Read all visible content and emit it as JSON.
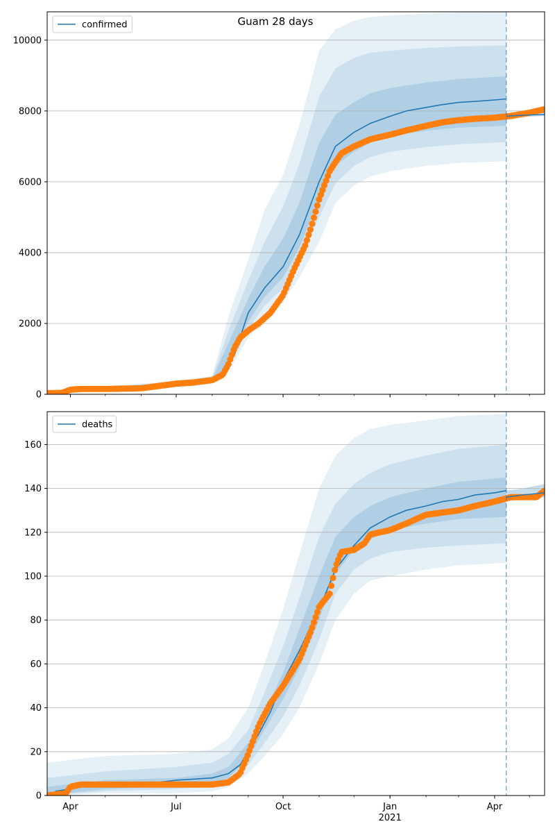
{
  "figure": {
    "title": "Guam 28 days"
  },
  "colors": {
    "model": "#1f77b4",
    "observed": "#ff7f0e",
    "band": "#1f77b4",
    "grid": "#b0b0b0",
    "forecast_line": "#1f77b4"
  },
  "chart_data": [
    {
      "type": "line",
      "legend": "confirmed",
      "legend_position": "top-left",
      "grid": true,
      "xlim": [
        "2020-03-12",
        "2021-05-14"
      ],
      "ylim": [
        0,
        10800
      ],
      "yticks": [
        0,
        2000,
        4000,
        6000,
        8000,
        10000
      ],
      "xticks": [
        {
          "date": "2020-04-01",
          "label": "Apr",
          "sub": ""
        },
        {
          "date": "2020-07-01",
          "label": "Jul",
          "sub": ""
        },
        {
          "date": "2020-10-01",
          "label": "Oct",
          "sub": ""
        },
        {
          "date": "2021-01-01",
          "label": "Jan",
          "sub": "2021"
        },
        {
          "date": "2021-04-01",
          "label": "Apr",
          "sub": ""
        }
      ],
      "forecast_start": "2021-04-11",
      "series": [
        {
          "name": "confirmed",
          "kind": "model",
          "x": [
            "2020-03-12",
            "2020-04-01",
            "2020-05-01",
            "2020-06-01",
            "2020-07-01",
            "2020-07-15",
            "2020-08-01",
            "2020-08-10",
            "2020-08-20",
            "2020-09-01",
            "2020-09-15",
            "2020-10-01",
            "2020-10-15",
            "2020-11-01",
            "2020-11-15",
            "2020-12-01",
            "2020-12-15",
            "2021-01-01",
            "2021-01-15",
            "2021-02-01",
            "2021-02-15",
            "2021-03-01",
            "2021-03-15",
            "2021-04-01",
            "2021-04-11"
          ],
          "y": [
            50,
            140,
            170,
            200,
            310,
            340,
            400,
            560,
            1100,
            2300,
            3000,
            3600,
            4500,
            6000,
            7000,
            7400,
            7650,
            7850,
            8000,
            8100,
            8180,
            8240,
            8270,
            8310,
            8340
          ]
        },
        {
          "name": "confirmed",
          "kind": "observed",
          "x": [
            "2020-03-12",
            "2020-03-25",
            "2020-04-01",
            "2020-04-10",
            "2020-05-01",
            "2020-06-01",
            "2020-07-01",
            "2020-07-15",
            "2020-08-01",
            "2020-08-10",
            "2020-08-15",
            "2020-08-20",
            "2020-08-25",
            "2020-09-01",
            "2020-09-10",
            "2020-09-20",
            "2020-10-01",
            "2020-10-10",
            "2020-10-20",
            "2020-10-25",
            "2020-11-01",
            "2020-11-10",
            "2020-11-20",
            "2020-12-01",
            "2020-12-15",
            "2021-01-01",
            "2021-01-15",
            "2021-02-01",
            "2021-02-15",
            "2021-03-01",
            "2021-03-15",
            "2021-04-01",
            "2021-04-15",
            "2021-05-01",
            "2021-05-14"
          ],
          "y": [
            30,
            40,
            130,
            150,
            150,
            170,
            300,
            330,
            400,
            550,
            850,
            1300,
            1600,
            1800,
            2000,
            2300,
            2800,
            3500,
            4200,
            4700,
            5500,
            6300,
            6800,
            7000,
            7200,
            7330,
            7450,
            7580,
            7680,
            7740,
            7780,
            7810,
            7860,
            7950,
            8050
          ]
        },
        {
          "name": "confirmed",
          "kind": "observed-extension",
          "x": [
            "2021-04-11",
            "2021-04-25",
            "2021-05-14"
          ],
          "y": [
            7850,
            7880,
            7900
          ]
        }
      ],
      "bands": [
        {
          "x": [
            "2020-03-12",
            "2020-05-01",
            "2020-07-01",
            "2020-08-01",
            "2020-08-15",
            "2020-09-01",
            "2020-09-15",
            "2020-10-01",
            "2020-10-15",
            "2020-11-01",
            "2020-11-15",
            "2020-12-01",
            "2020-12-15",
            "2021-01-01",
            "2021-02-01",
            "2021-03-01",
            "2021-04-11"
          ],
          "lower": [
            20,
            150,
            260,
            340,
            650,
            1600,
            2200,
            2600,
            3300,
            4300,
            5400,
            5900,
            6150,
            6300,
            6450,
            6530,
            6580
          ],
          "upper": [
            100,
            220,
            380,
            520,
            2200,
            3800,
            5200,
            6200,
            7600,
            9700,
            10300,
            10550,
            10650,
            10700,
            10750,
            10780,
            10800
          ]
        },
        {
          "x": [
            "2020-03-12",
            "2020-05-01",
            "2020-07-01",
            "2020-08-01",
            "2020-08-15",
            "2020-09-01",
            "2020-09-15",
            "2020-10-01",
            "2020-10-15",
            "2020-11-01",
            "2020-11-15",
            "2020-12-01",
            "2020-12-15",
            "2021-01-01",
            "2021-02-01",
            "2021-03-01",
            "2021-04-11"
          ],
          "lower": [
            30,
            155,
            280,
            360,
            760,
            1850,
            2500,
            3000,
            3800,
            5000,
            5950,
            6450,
            6700,
            6850,
            6980,
            7060,
            7120
          ],
          "upper": [
            85,
            200,
            350,
            470,
            1800,
            3200,
            4300,
            5300,
            6500,
            8400,
            9200,
            9500,
            9650,
            9700,
            9780,
            9820,
            9850
          ]
        },
        {
          "x": [
            "2020-03-12",
            "2020-05-01",
            "2020-07-01",
            "2020-08-01",
            "2020-08-15",
            "2020-09-01",
            "2020-09-15",
            "2020-10-01",
            "2020-10-15",
            "2020-11-01",
            "2020-11-15",
            "2020-12-01",
            "2020-12-15",
            "2021-01-01",
            "2021-02-01",
            "2021-03-01",
            "2021-04-11"
          ],
          "lower": [
            40,
            160,
            295,
            380,
            880,
            2050,
            2750,
            3300,
            4150,
            5500,
            6450,
            6850,
            7100,
            7300,
            7440,
            7530,
            7580
          ],
          "upper": [
            70,
            185,
            330,
            430,
            1450,
            2700,
            3600,
            4400,
            5400,
            7100,
            7900,
            8250,
            8500,
            8650,
            8800,
            8900,
            8980
          ]
        }
      ],
      "extension_band": {
        "x": [
          "2021-04-11",
          "2021-04-25",
          "2021-05-14"
        ],
        "lower": [
          7800,
          7830,
          7860
        ],
        "upper": [
          7880,
          7920,
          8050
        ]
      }
    },
    {
      "type": "line",
      "legend": "deaths",
      "legend_position": "top-left",
      "grid": true,
      "xlim": [
        "2020-03-12",
        "2021-05-14"
      ],
      "ylim": [
        0,
        175
      ],
      "yticks": [
        0,
        20,
        40,
        60,
        80,
        100,
        120,
        140,
        160
      ],
      "xticks": [
        {
          "date": "2020-04-01",
          "label": "Apr",
          "sub": ""
        },
        {
          "date": "2020-07-01",
          "label": "Jul",
          "sub": ""
        },
        {
          "date": "2020-10-01",
          "label": "Oct",
          "sub": ""
        },
        {
          "date": "2021-01-01",
          "label": "Jan",
          "sub": "2021"
        },
        {
          "date": "2021-04-01",
          "label": "Apr",
          "sub": ""
        }
      ],
      "forecast_start": "2021-04-11",
      "series": [
        {
          "name": "deaths",
          "kind": "model",
          "x": [
            "2020-03-12",
            "2020-03-20",
            "2020-04-01",
            "2020-04-15",
            "2020-05-01",
            "2020-06-01",
            "2020-07-01",
            "2020-08-01",
            "2020-08-15",
            "2020-08-25",
            "2020-09-01",
            "2020-09-10",
            "2020-09-20",
            "2020-10-01",
            "2020-10-15",
            "2020-11-01",
            "2020-11-15",
            "2020-12-01",
            "2020-12-15",
            "2021-01-01",
            "2021-01-15",
            "2021-02-01",
            "2021-02-15",
            "2021-03-01",
            "2021-03-15",
            "2021-04-01",
            "2021-04-11"
          ],
          "y": [
            0,
            2,
            3,
            5,
            5,
            5,
            7,
            8,
            10,
            14,
            20,
            28,
            38,
            52,
            66,
            85,
            103,
            114,
            122,
            127,
            130,
            132,
            134,
            135,
            137,
            138,
            139
          ]
        },
        {
          "name": "deaths",
          "kind": "observed",
          "x": [
            "2020-03-12",
            "2020-03-28",
            "2020-04-01",
            "2020-04-10",
            "2020-05-01",
            "2020-06-01",
            "2020-07-01",
            "2020-08-01",
            "2020-08-15",
            "2020-08-25",
            "2020-09-01",
            "2020-09-10",
            "2020-09-20",
            "2020-10-01",
            "2020-10-15",
            "2020-10-25",
            "2020-11-01",
            "2020-11-10",
            "2020-11-15",
            "2020-11-20",
            "2020-12-01",
            "2020-12-10",
            "2020-12-15",
            "2021-01-01",
            "2021-01-15",
            "2021-02-01",
            "2021-02-15",
            "2021-03-01",
            "2021-03-15",
            "2021-04-01",
            "2021-04-15",
            "2021-05-01",
            "2021-05-07",
            "2021-05-14"
          ],
          "y": [
            0,
            1,
            4,
            5,
            5,
            5,
            5,
            5,
            6,
            10,
            19,
            32,
            42,
            50,
            62,
            75,
            86,
            92,
            104,
            111,
            112,
            115,
            119,
            121,
            124,
            128,
            129,
            130,
            132,
            134,
            136,
            136,
            136,
            139
          ]
        },
        {
          "name": "deaths",
          "kind": "observed-extension",
          "x": [
            "2021-04-11",
            "2021-04-25",
            "2021-05-14"
          ],
          "y": [
            136,
            137,
            138
          ]
        }
      ],
      "bands": [
        {
          "x": [
            "2020-03-12",
            "2020-05-01",
            "2020-07-01",
            "2020-08-01",
            "2020-08-15",
            "2020-09-01",
            "2020-09-15",
            "2020-10-01",
            "2020-10-15",
            "2020-11-01",
            "2020-11-15",
            "2020-12-01",
            "2020-12-15",
            "2021-01-01",
            "2021-02-01",
            "2021-03-01",
            "2021-04-11"
          ],
          "lower": [
            0,
            1,
            1,
            2,
            4,
            10,
            18,
            28,
            40,
            60,
            80,
            92,
            98,
            100,
            103,
            105,
            106
          ],
          "upper": [
            15,
            18,
            19,
            21,
            26,
            40,
            60,
            85,
            110,
            140,
            155,
            163,
            167,
            169,
            171,
            173,
            174
          ]
        },
        {
          "x": [
            "2020-03-12",
            "2020-05-01",
            "2020-07-01",
            "2020-08-01",
            "2020-08-15",
            "2020-09-01",
            "2020-09-15",
            "2020-10-01",
            "2020-10-15",
            "2020-11-01",
            "2020-11-15",
            "2020-12-01",
            "2020-12-15",
            "2021-01-01",
            "2021-02-01",
            "2021-03-01",
            "2021-04-11"
          ],
          "lower": [
            0,
            2,
            3,
            4,
            6,
            14,
            24,
            36,
            50,
            71,
            92,
            103,
            108,
            111,
            113,
            114,
            115
          ],
          "upper": [
            8,
            11,
            13,
            15,
            19,
            30,
            47,
            68,
            90,
            118,
            133,
            142,
            147,
            151,
            155,
            158,
            160
          ]
        },
        {
          "x": [
            "2020-03-12",
            "2020-05-01",
            "2020-07-01",
            "2020-08-01",
            "2020-08-15",
            "2020-09-01",
            "2020-09-15",
            "2020-10-01",
            "2020-10-15",
            "2020-11-01",
            "2020-11-15",
            "2020-12-01",
            "2020-12-15",
            "2021-01-01",
            "2021-02-01",
            "2021-03-01",
            "2021-04-11"
          ],
          "lower": [
            0,
            3,
            4,
            5,
            8,
            17,
            30,
            44,
            58,
            80,
            101,
            112,
            117,
            121,
            124,
            126,
            127
          ],
          "upper": [
            4,
            7,
            8,
            10,
            13,
            24,
            38,
            56,
            76,
            100,
            118,
            127,
            132,
            136,
            140,
            143,
            145
          ]
        }
      ],
      "extension_band": {
        "x": [
          "2021-04-11",
          "2021-04-25",
          "2021-05-14"
        ],
        "lower": [
          134,
          135,
          136
        ],
        "upper": [
          139,
          140,
          142
        ]
      }
    }
  ]
}
